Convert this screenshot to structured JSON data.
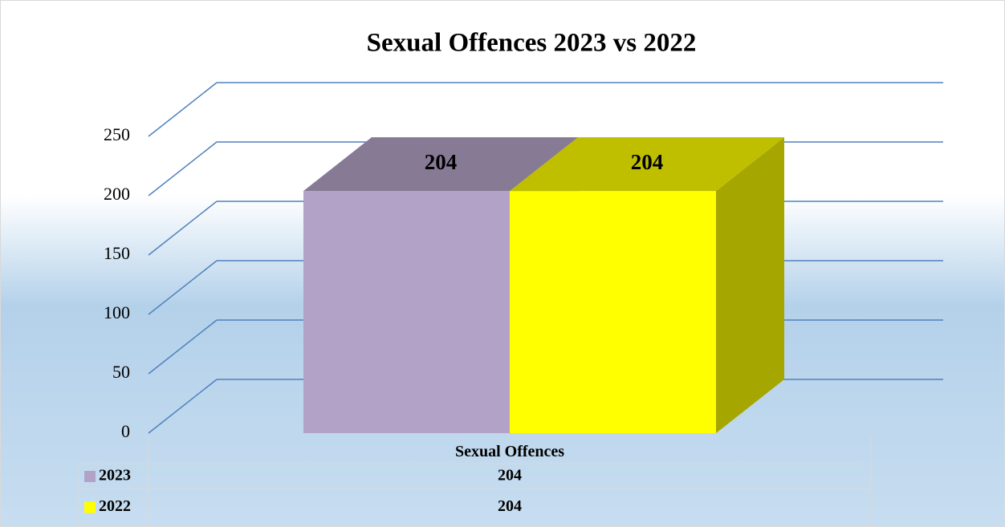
{
  "chart_data": {
    "type": "bar3d",
    "title": "Sexual Offences 2023 vs 2022",
    "categories": [
      "Sexual Offences"
    ],
    "series": [
      {
        "name": "2023",
        "color": "#b3a2c7",
        "values": [
          204
        ]
      },
      {
        "name": "2022",
        "color": "#ffff00",
        "values": [
          204
        ]
      }
    ],
    "ylim": [
      0,
      250
    ],
    "yticks": [
      0,
      50,
      100,
      150,
      200,
      250
    ],
    "grid": true,
    "grid_color": "#4f81bd"
  }
}
